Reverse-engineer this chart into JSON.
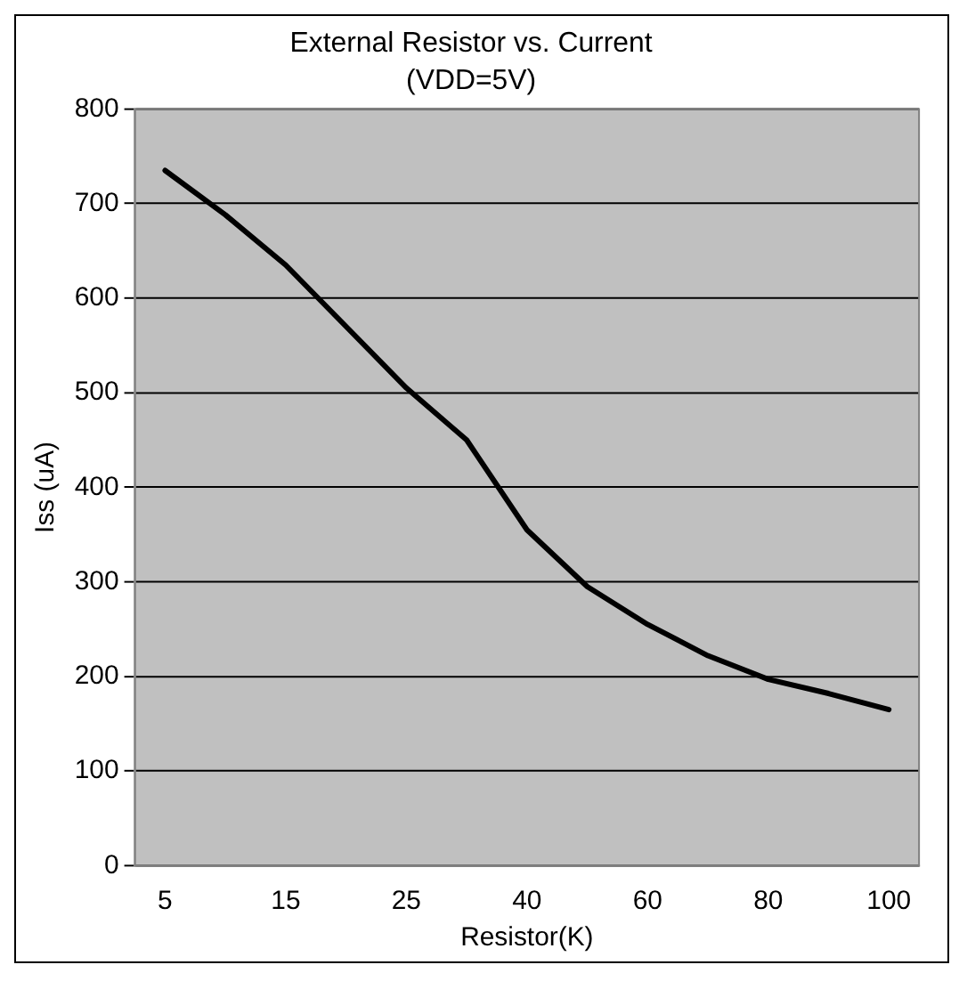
{
  "chart_data": {
    "type": "line",
    "title": "External Resistor vs. Current",
    "subtitle": "(VDD=5V)",
    "xlabel": "Resistor(K)",
    "ylabel": "Iss (uA)",
    "categories": [
      "5",
      null,
      "15",
      null,
      "25",
      null,
      "40",
      null,
      "60",
      null,
      "80",
      null,
      "100"
    ],
    "series": [
      {
        "color": "#000000",
        "values": [
          735,
          688,
          635,
          570,
          505,
          450,
          355,
          295,
          255,
          222,
          197,
          182,
          165
        ]
      }
    ],
    "ylim": [
      0,
      800
    ],
    "yticks": [
      0,
      100,
      200,
      300,
      400,
      500,
      600,
      700,
      800
    ],
    "grid": "y",
    "legend": false,
    "marker": "none",
    "line_style": "solid"
  }
}
